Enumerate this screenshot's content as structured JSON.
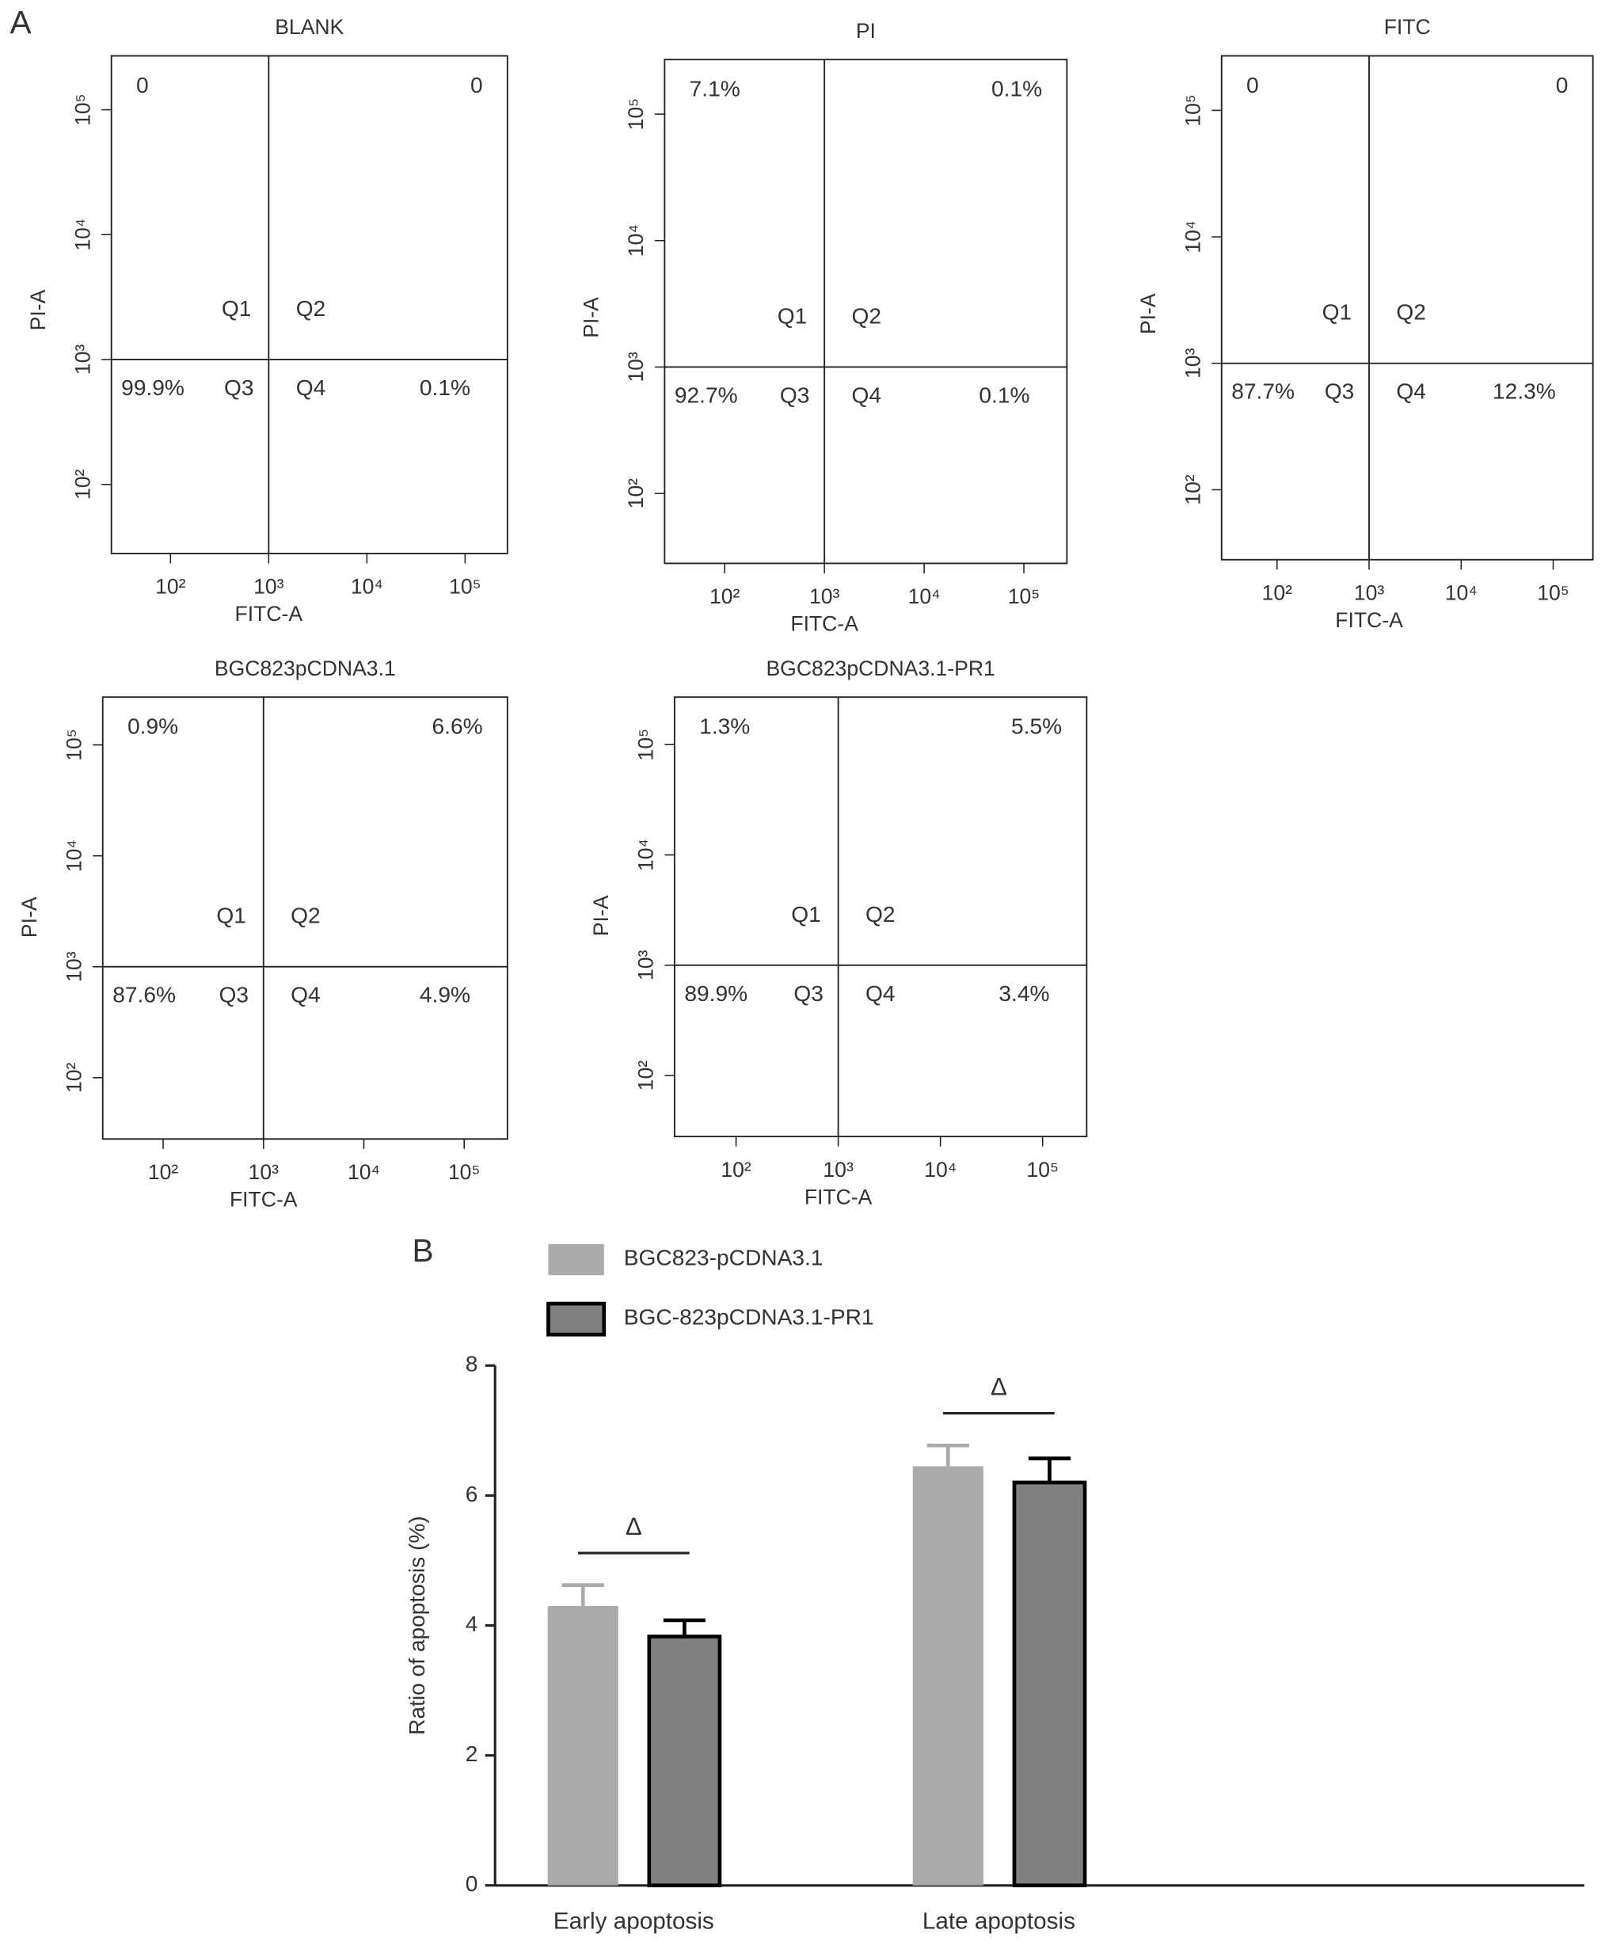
{
  "panel_labels": [
    "A",
    "B"
  ],
  "chart_data": [
    {
      "type": "quadrant",
      "title": "BLANK",
      "x_label": "FITC-A",
      "y_label": "PI-A",
      "log_x": true,
      "log_y": true,
      "xlim": [
        25,
        270000
      ],
      "ylim": [
        28,
        270000
      ],
      "xticks": [
        {
          "value": 100,
          "label": "10²"
        },
        {
          "value": 1000,
          "label": "10³"
        },
        {
          "value": 10000,
          "label": "10⁴"
        },
        {
          "value": 100000,
          "label": "10⁵"
        }
      ],
      "yticks": [
        {
          "value": 100,
          "label": "10²"
        },
        {
          "value": 1000,
          "label": "10³"
        },
        {
          "value": 10000,
          "label": "10⁴"
        },
        {
          "value": 100000,
          "label": "10⁵"
        }
      ],
      "gate": [
        1000,
        1000
      ],
      "quadrants": [
        "Q1",
        "Q2",
        "Q3",
        "Q4"
      ],
      "values": [
        0,
        0,
        99.9,
        0.1
      ],
      "value_labels": [
        "0",
        "0",
        "99.9%",
        "0.1%"
      ]
    },
    {
      "type": "quadrant",
      "title": "PI",
      "x_label": "FITC-A",
      "y_label": "PI-A",
      "log_x": true,
      "log_y": true,
      "xlim": [
        25,
        270000
      ],
      "ylim": [
        28,
        270000
      ],
      "xticks": [
        {
          "value": 100,
          "label": "10²"
        },
        {
          "value": 1000,
          "label": "10³"
        },
        {
          "value": 10000,
          "label": "10⁴"
        },
        {
          "value": 100000,
          "label": "10⁵"
        }
      ],
      "yticks": [
        {
          "value": 100,
          "label": "10²"
        },
        {
          "value": 1000,
          "label": "10³"
        },
        {
          "value": 10000,
          "label": "10⁴"
        },
        {
          "value": 100000,
          "label": "10⁵"
        }
      ],
      "gate": [
        1000,
        1000
      ],
      "quadrants": [
        "Q1",
        "Q2",
        "Q3",
        "Q4"
      ],
      "values": [
        7.1,
        0.1,
        92.7,
        0.1
      ],
      "value_labels": [
        "7.1%",
        "0.1%",
        "92.7%",
        "0.1%"
      ]
    },
    {
      "type": "quadrant",
      "title": "FITC",
      "x_label": "FITC-A",
      "y_label": "PI-A",
      "log_x": true,
      "log_y": true,
      "xlim": [
        25,
        270000
      ],
      "ylim": [
        28,
        270000
      ],
      "xticks": [
        {
          "value": 100,
          "label": "10²"
        },
        {
          "value": 1000,
          "label": "10³"
        },
        {
          "value": 10000,
          "label": "10⁴"
        },
        {
          "value": 100000,
          "label": "10⁵"
        }
      ],
      "yticks": [
        {
          "value": 100,
          "label": "10²"
        },
        {
          "value": 1000,
          "label": "10³"
        },
        {
          "value": 10000,
          "label": "10⁴"
        },
        {
          "value": 100000,
          "label": "10⁵"
        }
      ],
      "gate": [
        1000,
        1000
      ],
      "quadrants": [
        "Q1",
        "Q2",
        "Q3",
        "Q4"
      ],
      "values": [
        0,
        0,
        87.7,
        12.3
      ],
      "value_labels": [
        "0",
        "0",
        "87.7%",
        "12.3%"
      ]
    },
    {
      "type": "quadrant",
      "title": "BGC823pCDNA3.1",
      "x_label": "FITC-A",
      "y_label": "PI-A",
      "log_x": true,
      "log_y": true,
      "xlim": [
        25,
        270000
      ],
      "ylim": [
        28,
        270000
      ],
      "xticks": [
        {
          "value": 100,
          "label": "10²"
        },
        {
          "value": 1000,
          "label": "10³"
        },
        {
          "value": 10000,
          "label": "10⁴"
        },
        {
          "value": 100000,
          "label": "10⁵"
        }
      ],
      "yticks": [
        {
          "value": 100,
          "label": "10²"
        },
        {
          "value": 1000,
          "label": "10³"
        },
        {
          "value": 10000,
          "label": "10⁴"
        },
        {
          "value": 100000,
          "label": "10⁵"
        }
      ],
      "gate": [
        1000,
        1000
      ],
      "quadrants": [
        "Q1",
        "Q2",
        "Q3",
        "Q4"
      ],
      "values": [
        0.9,
        6.6,
        87.6,
        4.9
      ],
      "value_labels": [
        "0.9%",
        "6.6%",
        "87.6%",
        "4.9%"
      ]
    },
    {
      "type": "quadrant",
      "title": "BGC823pCDNA3.1-PR1",
      "x_label": "FITC-A",
      "y_label": "PI-A",
      "log_x": true,
      "log_y": true,
      "xlim": [
        25,
        270000
      ],
      "ylim": [
        28,
        270000
      ],
      "xticks": [
        {
          "value": 100,
          "label": "10²"
        },
        {
          "value": 1000,
          "label": "10³"
        },
        {
          "value": 10000,
          "label": "10⁴"
        },
        {
          "value": 100000,
          "label": "10⁵"
        }
      ],
      "yticks": [
        {
          "value": 100,
          "label": "10²"
        },
        {
          "value": 1000,
          "label": "10³"
        },
        {
          "value": 10000,
          "label": "10⁴"
        },
        {
          "value": 100000,
          "label": "10⁵"
        }
      ],
      "gate": [
        1000,
        1000
      ],
      "quadrants": [
        "Q1",
        "Q2",
        "Q3",
        "Q4"
      ],
      "values": [
        1.3,
        5.5,
        89.9,
        3.4
      ],
      "value_labels": [
        "1.3%",
        "5.5%",
        "89.9%",
        "3.4%"
      ]
    },
    {
      "type": "bar",
      "y_label": "Ratio of apoptosis (%)",
      "categories": [
        "Early apoptosis",
        "Late apoptosis"
      ],
      "series": [
        {
          "name": "BGC823-pCDNA3.1",
          "color": "#aaaaaa",
          "values": [
            4.3,
            6.45
          ],
          "errors": [
            0.32,
            0.32
          ]
        },
        {
          "name": "BGC-823pCDNA3.1-PR1",
          "color": "#808080",
          "edge": "#000000",
          "values": [
            3.83,
            6.2
          ],
          "errors": [
            0.25,
            0.37
          ]
        }
      ],
      "ylim": [
        0,
        8
      ],
      "yticks": [
        0,
        2,
        4,
        6,
        8
      ],
      "significance": [
        "Δ",
        "Δ"
      ]
    }
  ]
}
